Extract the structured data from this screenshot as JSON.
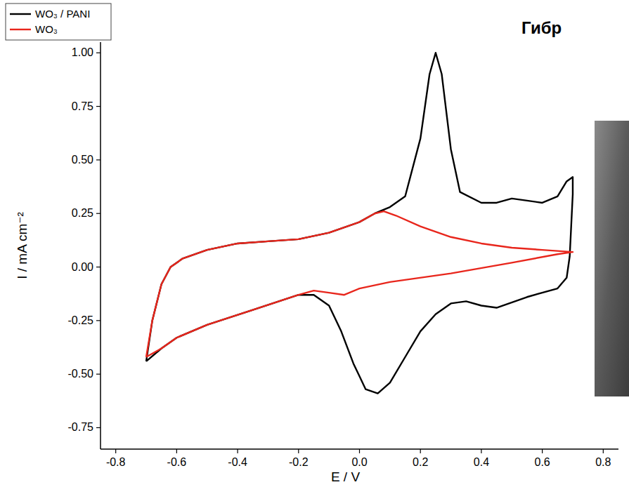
{
  "chart_data": {
    "type": "line",
    "title": "Гибр",
    "x_label": "E / V",
    "y_label": "I / mA cm⁻²",
    "xlim": [
      -0.85,
      0.85
    ],
    "ylim": [
      -0.85,
      1.05
    ],
    "xticks": [
      {
        "value": -0.8,
        "label": "-0.8"
      },
      {
        "value": -0.6,
        "label": "-0.6"
      },
      {
        "value": -0.4,
        "label": "-0.4"
      },
      {
        "value": -0.2,
        "label": "-0.2"
      },
      {
        "value": 0,
        "label": "0.0"
      },
      {
        "value": 0.2,
        "label": "0.2"
      },
      {
        "value": 0.4,
        "label": "0.4"
      },
      {
        "value": 0.6,
        "label": "0.6"
      },
      {
        "value": 0.8,
        "label": "0.8"
      }
    ],
    "yticks": [
      {
        "value": -0.75,
        "label": "-0.75"
      },
      {
        "value": -0.5,
        "label": "-0.50"
      },
      {
        "value": -0.25,
        "label": "-0.25"
      },
      {
        "value": 0,
        "label": "0.00"
      },
      {
        "value": 0.25,
        "label": "0.25"
      },
      {
        "value": 0.5,
        "label": "0.50"
      },
      {
        "value": 0.75,
        "label": "0.75"
      },
      {
        "value": 1,
        "label": "1.00"
      }
    ],
    "grid": false,
    "legend": "top-left",
    "series": [
      {
        "name": "WO₃ / PANI",
        "color": "#000000",
        "x": [
          -0.7,
          -0.68,
          -0.65,
          -0.62,
          -0.58,
          -0.5,
          -0.4,
          -0.3,
          -0.2,
          -0.1,
          0.0,
          0.05,
          0.1,
          0.15,
          0.2,
          0.23,
          0.25,
          0.27,
          0.3,
          0.33,
          0.4,
          0.45,
          0.5,
          0.55,
          0.6,
          0.65,
          0.68,
          0.7,
          0.7,
          0.69,
          0.68,
          0.65,
          0.55,
          0.45,
          0.4,
          0.35,
          0.3,
          0.25,
          0.2,
          0.15,
          0.1,
          0.06,
          0.02,
          -0.02,
          -0.06,
          -0.1,
          -0.15,
          -0.2,
          -0.35,
          -0.5,
          -0.6,
          -0.65,
          -0.7
        ],
        "values": [
          -0.44,
          -0.25,
          -0.08,
          0.0,
          0.04,
          0.08,
          0.11,
          0.12,
          0.13,
          0.16,
          0.21,
          0.25,
          0.28,
          0.33,
          0.6,
          0.9,
          1.0,
          0.9,
          0.55,
          0.35,
          0.3,
          0.3,
          0.32,
          0.31,
          0.3,
          0.33,
          0.4,
          0.42,
          0.34,
          0.05,
          -0.05,
          -0.1,
          -0.14,
          -0.19,
          -0.18,
          -0.16,
          -0.17,
          -0.22,
          -0.3,
          -0.42,
          -0.54,
          -0.59,
          -0.57,
          -0.45,
          -0.3,
          -0.18,
          -0.13,
          -0.13,
          -0.2,
          -0.27,
          -0.33,
          -0.38,
          -0.44
        ]
      },
      {
        "name": "WO₃",
        "color": "#e8261c",
        "x": [
          -0.7,
          -0.68,
          -0.65,
          -0.62,
          -0.58,
          -0.5,
          -0.4,
          -0.3,
          -0.2,
          -0.1,
          0.0,
          0.05,
          0.08,
          0.12,
          0.2,
          0.3,
          0.4,
          0.5,
          0.6,
          0.7,
          0.65,
          0.5,
          0.3,
          0.1,
          0.0,
          -0.05,
          -0.1,
          -0.15,
          -0.2,
          -0.35,
          -0.5,
          -0.6,
          -0.65,
          -0.7
        ],
        "values": [
          -0.42,
          -0.25,
          -0.08,
          0.0,
          0.04,
          0.08,
          0.11,
          0.12,
          0.13,
          0.16,
          0.21,
          0.25,
          0.26,
          0.24,
          0.19,
          0.14,
          0.11,
          0.09,
          0.08,
          0.07,
          0.06,
          0.02,
          -0.03,
          -0.07,
          -0.1,
          -0.13,
          -0.12,
          -0.11,
          -0.13,
          -0.2,
          -0.27,
          -0.33,
          -0.38,
          -0.42
        ]
      }
    ]
  }
}
